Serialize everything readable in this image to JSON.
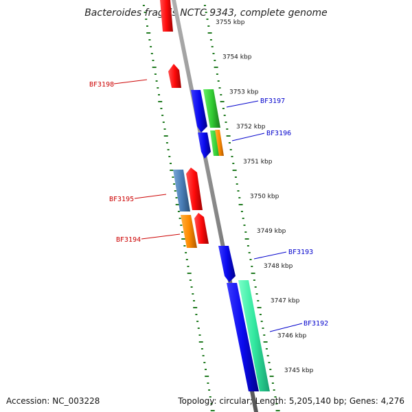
{
  "title": "Bacteroides fragilis NCTC 9343, complete genome",
  "accession_text": "Accession: NC_003228",
  "summary_text": "Topology: circular; Length: 5,205,140 bp; Genes: 4,276",
  "position_labels": [
    "3755 kbp",
    "3754 kbp",
    "3753 kbp",
    "3752 kbp",
    "3751 kbp",
    "3750 kbp",
    "3749 kbp",
    "3748 kbp",
    "3747 kbp",
    "3746 kbp",
    "3745 kbp"
  ],
  "gene_labels": {
    "reverse": [
      "BF3198",
      "BF3195",
      "BF3194"
    ],
    "forward": [
      "BF3197",
      "BF3196",
      "BF3193",
      "BF3192"
    ]
  },
  "colors": {
    "backbone": "#888888",
    "ticks": "#1f7a1f",
    "red": "#e8101a",
    "blue": "#1010dd",
    "green": "#33cc33",
    "orange": "#ff8c00",
    "steelblue": "#4a7fb8",
    "seagreen": "#33e8a0",
    "reverse_label": "#cc0000",
    "forward_label": "#0000cc"
  }
}
